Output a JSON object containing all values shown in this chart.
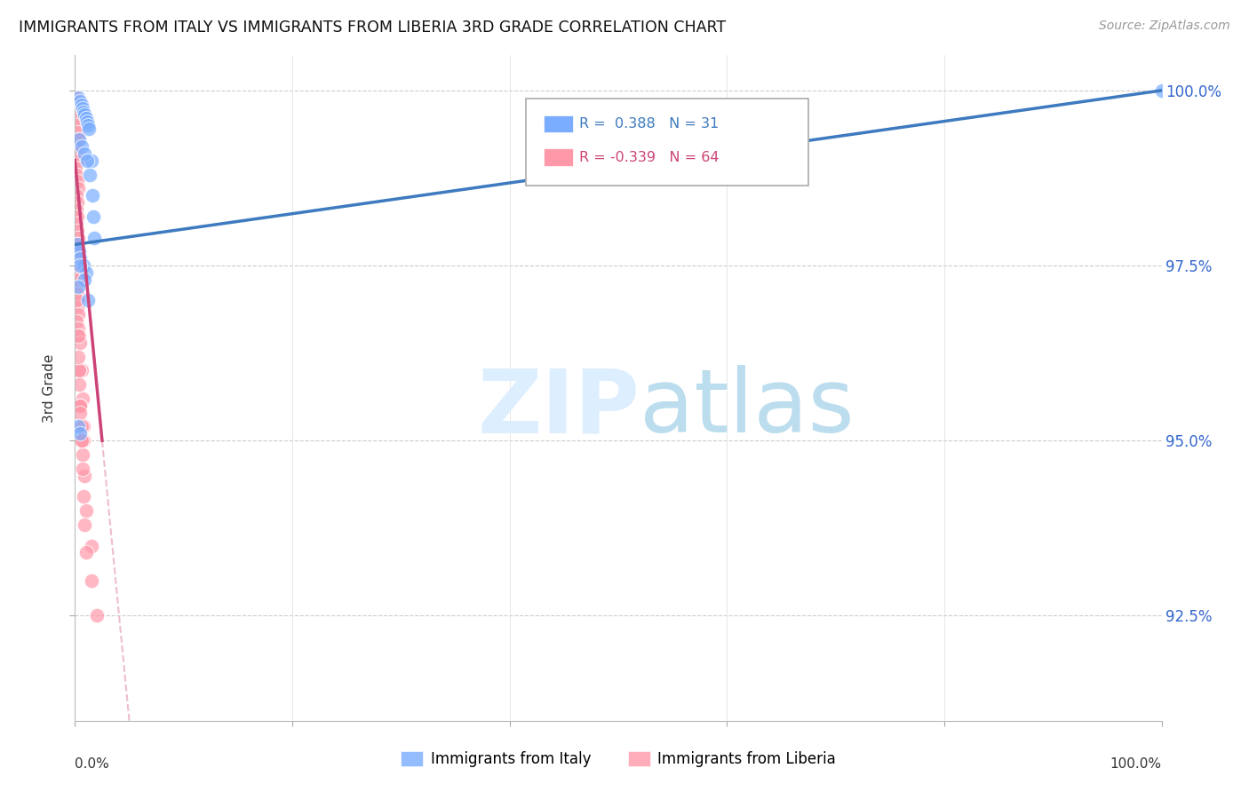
{
  "title": "IMMIGRANTS FROM ITALY VS IMMIGRANTS FROM LIBERIA 3RD GRADE CORRELATION CHART",
  "source": "Source: ZipAtlas.com",
  "ylabel": "3rd Grade",
  "R_italy": 0.388,
  "N_italy": 31,
  "R_liberia": -0.339,
  "N_liberia": 64,
  "italy_color": "#7aadff",
  "liberia_color": "#ff99aa",
  "italy_line_color": "#3d7abf",
  "liberia_line_color": "#cc4477",
  "legend_italy": "Immigrants from Italy",
  "legend_liberia": "Immigrants from Liberia",
  "xlim": [
    0,
    100
  ],
  "ylim": [
    91.0,
    100.5
  ],
  "yticks": [
    92.5,
    95.0,
    97.5,
    100.0
  ],
  "xticks": [
    0,
    20,
    40,
    60,
    80,
    100
  ],
  "italy_x": [
    0.3,
    0.5,
    0.6,
    0.7,
    0.8,
    0.9,
    1.0,
    1.1,
    1.2,
    1.3,
    1.5,
    1.6,
    1.7,
    1.8,
    1.4,
    0.4,
    0.6,
    0.9,
    1.1,
    0.2,
    0.4,
    0.5,
    0.8,
    1.0,
    0.5,
    0.9,
    0.3,
    1.2,
    0.3,
    0.5,
    100.0
  ],
  "italy_y": [
    99.9,
    99.85,
    99.8,
    99.75,
    99.7,
    99.65,
    99.6,
    99.55,
    99.5,
    99.45,
    99.0,
    98.5,
    98.2,
    97.9,
    98.8,
    99.3,
    99.2,
    99.1,
    99.0,
    97.8,
    97.7,
    97.6,
    97.5,
    97.4,
    97.5,
    97.3,
    97.2,
    97.0,
    95.2,
    95.1,
    100.0
  ],
  "liberia_x": [
    0.1,
    0.15,
    0.2,
    0.1,
    0.12,
    0.18,
    0.25,
    0.3,
    0.1,
    0.14,
    0.2,
    0.08,
    0.16,
    0.22,
    0.28,
    0.1,
    0.18,
    0.12,
    0.2,
    0.15,
    0.25,
    0.3,
    0.1,
    0.2,
    0.15,
    0.1,
    0.2,
    0.3,
    0.12,
    0.25,
    0.18,
    0.22,
    0.28,
    0.15,
    0.3,
    0.4,
    0.5,
    0.6,
    0.7,
    0.8,
    0.4,
    0.5,
    0.6,
    0.7,
    0.8,
    0.9,
    1.0,
    1.5,
    0.5,
    0.6,
    0.2,
    0.3,
    0.4,
    0.5,
    0.3,
    0.4,
    0.5,
    0.6,
    0.7,
    0.8,
    0.9,
    1.0,
    1.5,
    2.0
  ],
  "liberia_y": [
    99.9,
    99.85,
    99.8,
    99.7,
    99.6,
    99.5,
    99.4,
    99.3,
    99.2,
    99.1,
    99.0,
    98.9,
    98.8,
    98.7,
    98.6,
    98.5,
    98.4,
    98.3,
    98.2,
    98.1,
    98.0,
    97.9,
    97.8,
    97.7,
    97.6,
    97.5,
    97.4,
    97.3,
    97.2,
    97.1,
    97.0,
    96.9,
    96.8,
    96.7,
    96.6,
    96.5,
    96.4,
    96.0,
    95.6,
    95.2,
    96.0,
    95.5,
    95.2,
    94.8,
    95.0,
    94.5,
    94.0,
    93.5,
    95.5,
    95.0,
    97.0,
    96.5,
    96.0,
    95.5,
    96.2,
    95.8,
    95.4,
    95.0,
    94.6,
    94.2,
    93.8,
    93.4,
    93.0,
    92.5
  ]
}
